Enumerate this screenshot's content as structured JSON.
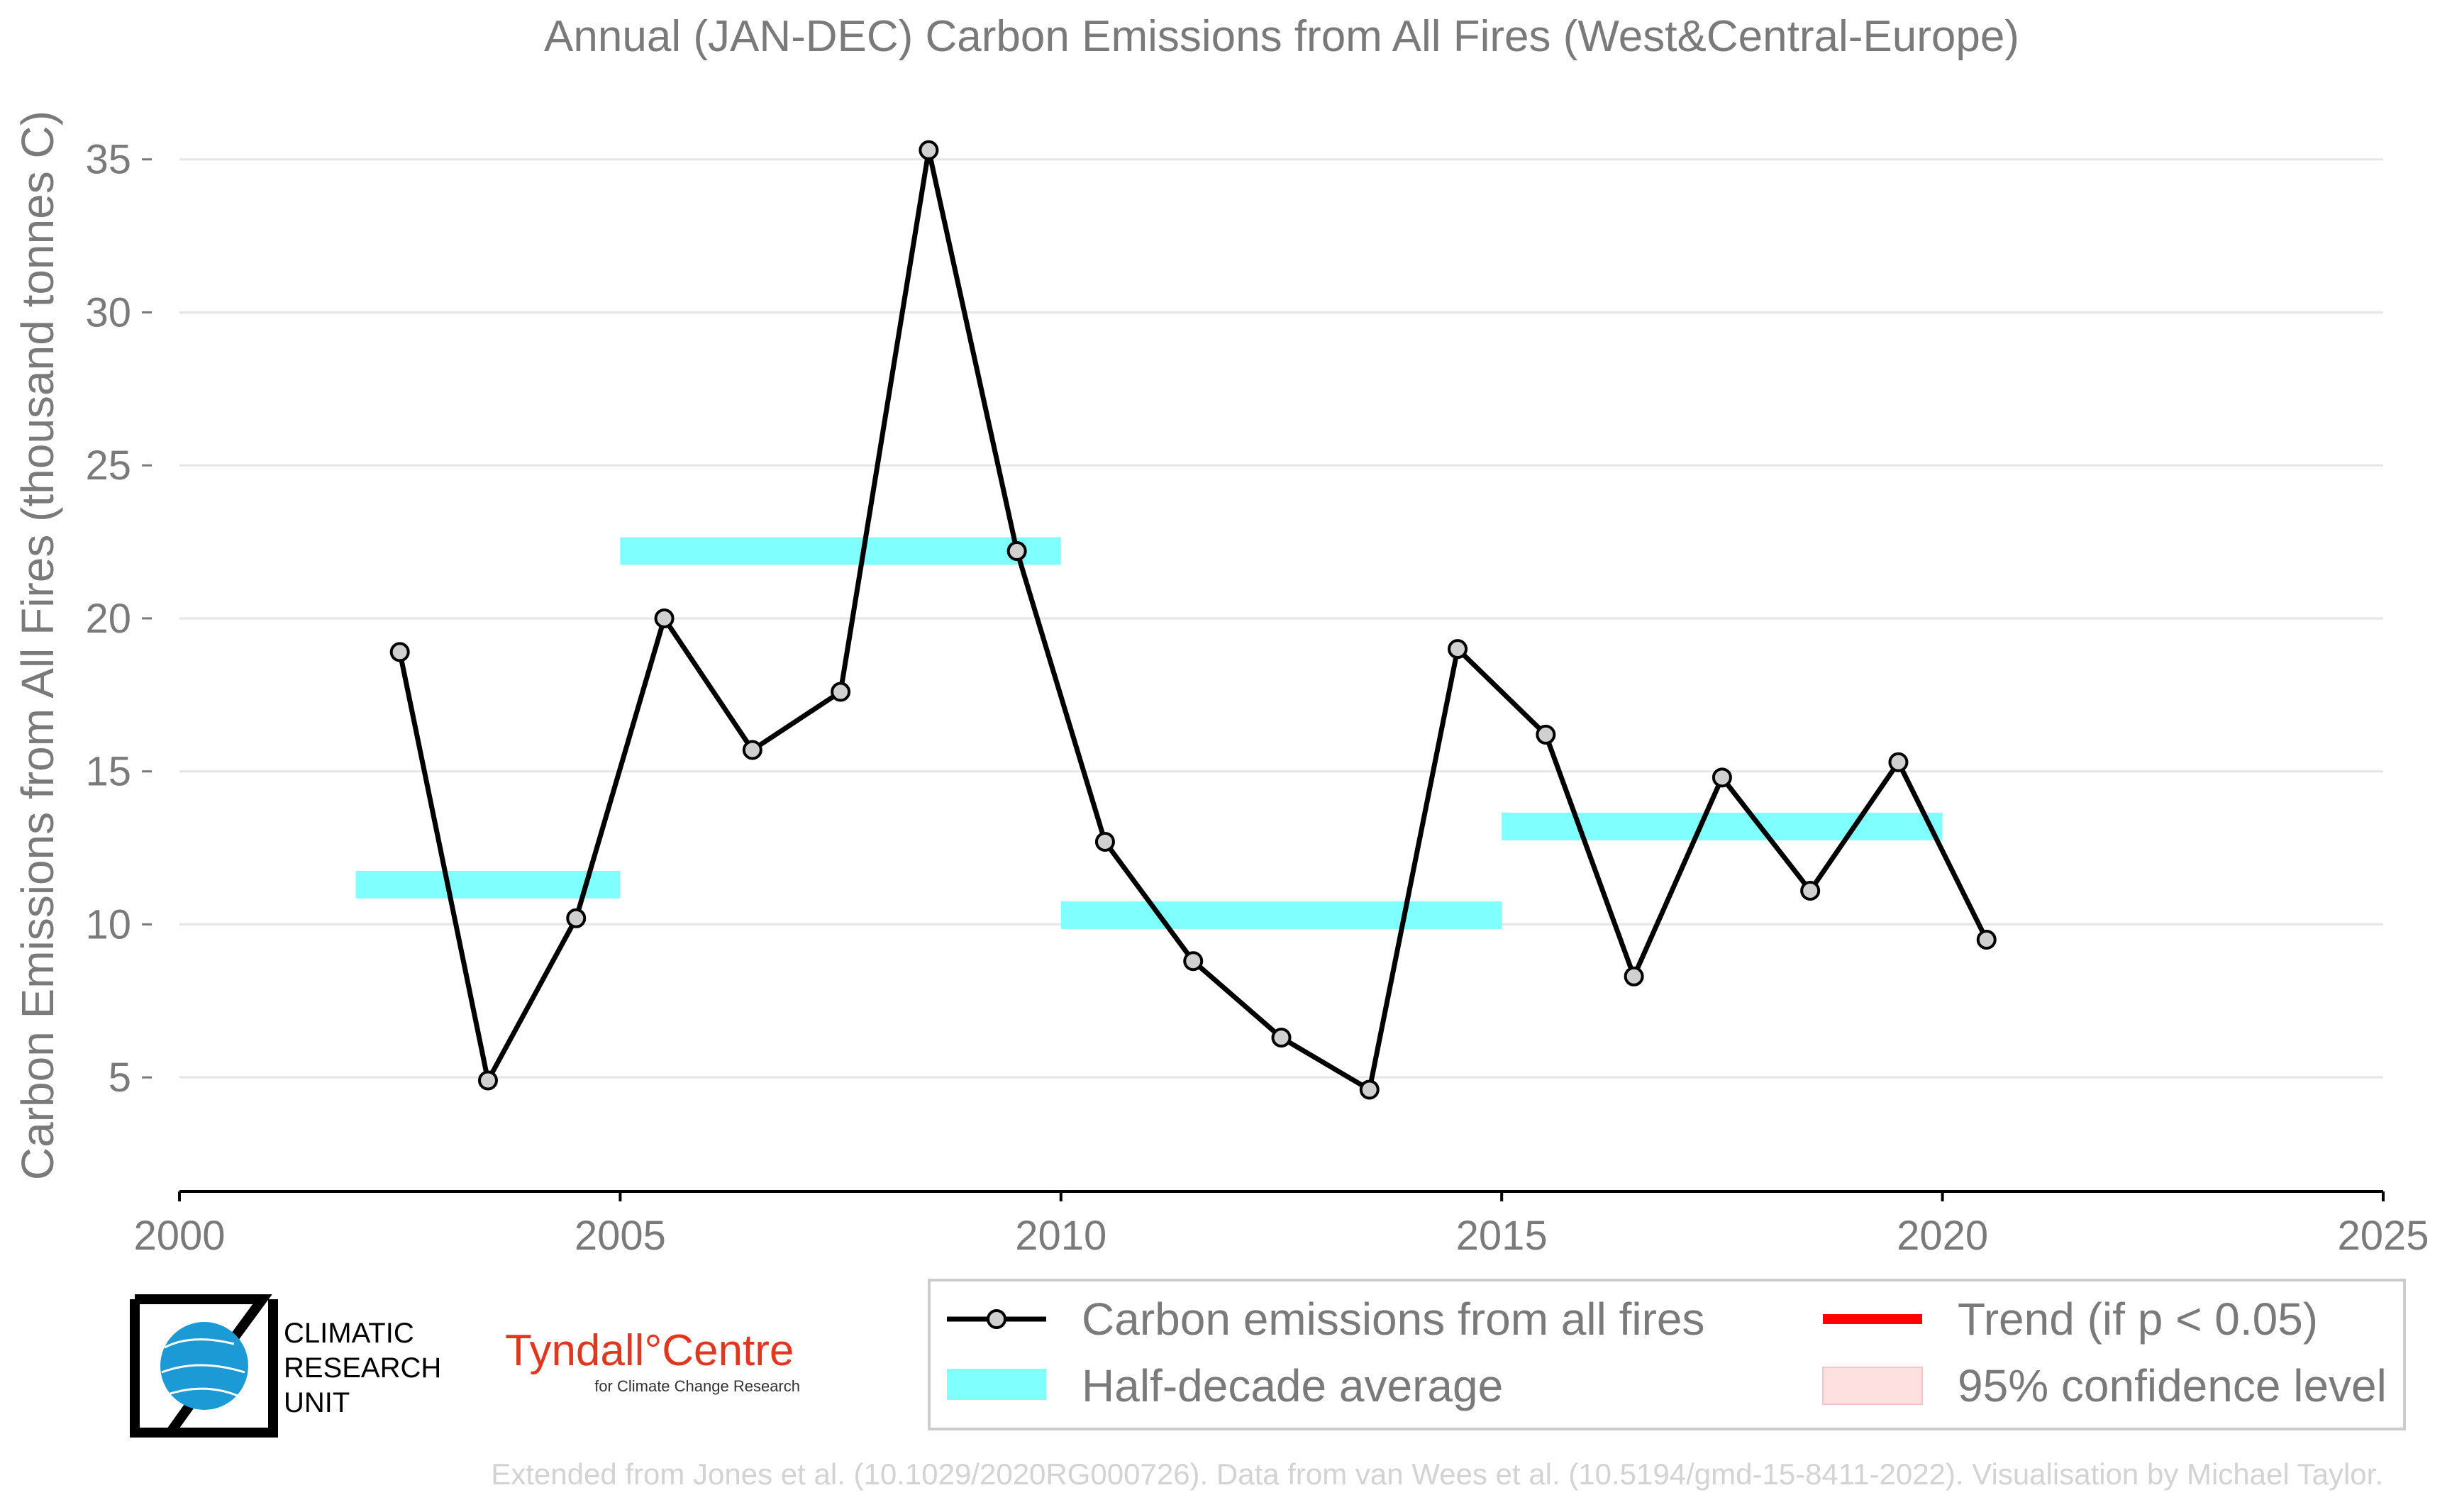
{
  "chart_data": {
    "type": "line",
    "title": "Annual (JAN-DEC) Carbon Emissions from All Fires (West&Central-Europe)",
    "ylabel": "Carbon Emissions from All Fires (thousand tonnes C)",
    "xlabel": "",
    "xlim": [
      2000,
      2025
    ],
    "ylim": [
      2.2,
      36.5
    ],
    "x_ticks": [
      "2000",
      "2005",
      "2010",
      "2015",
      "2020",
      "2025"
    ],
    "y_ticks": [
      "5",
      "10",
      "15",
      "20",
      "25",
      "30",
      "35"
    ],
    "grid": "horizontal",
    "series": [
      {
        "name": "Carbon emissions from all fires",
        "color": "#000000",
        "x": [
          2002.5,
          2003.5,
          2004.5,
          2005.5,
          2006.5,
          2007.5,
          2008.5,
          2009.5,
          2010.5,
          2011.5,
          2012.5,
          2013.5,
          2014.5,
          2015.5,
          2016.5,
          2017.5,
          2018.5,
          2019.5,
          2020.5
        ],
        "y": [
          18.9,
          4.9,
          10.2,
          20.0,
          15.7,
          17.6,
          35.3,
          22.2,
          12.7,
          8.8,
          6.3,
          4.6,
          19.0,
          16.2,
          8.3,
          14.8,
          11.1,
          15.3,
          9.5
        ]
      },
      {
        "name": "Half-decade average",
        "color": "#80ffff",
        "segments": [
          {
            "x": [
              2002,
              2005
            ],
            "y": 11.3
          },
          {
            "x": [
              2005,
              2010
            ],
            "y": 22.2
          },
          {
            "x": [
              2010,
              2015
            ],
            "y": 10.3
          },
          {
            "x": [
              2015,
              2020
            ],
            "y": 13.2
          }
        ]
      }
    ],
    "legend": {
      "placement": "bottom-right",
      "items": [
        {
          "label": "Carbon emissions from all fires",
          "color": "#000000",
          "kind": "line-marker"
        },
        {
          "label": "Trend (if p < 0.05)",
          "color": "#ff0000",
          "kind": "line"
        },
        {
          "label": "Half-decade average",
          "color": "#80ffff",
          "kind": "band"
        },
        {
          "label": "95% confidence level",
          "color": "#ffe0e0",
          "kind": "band"
        }
      ]
    }
  },
  "logos": {
    "cru_lines": [
      "CLIMATIC",
      "RESEARCH",
      "UNIT"
    ],
    "tyndall_main": "Tyndall°Centre",
    "tyndall_sub": "for Climate Change Research"
  },
  "footer": "Extended from Jones et al. (10.1029/2020RG000726). Data from van Wees et al. (10.5194/gmd-15-8411-2022). Visualisation by Michael Taylor."
}
